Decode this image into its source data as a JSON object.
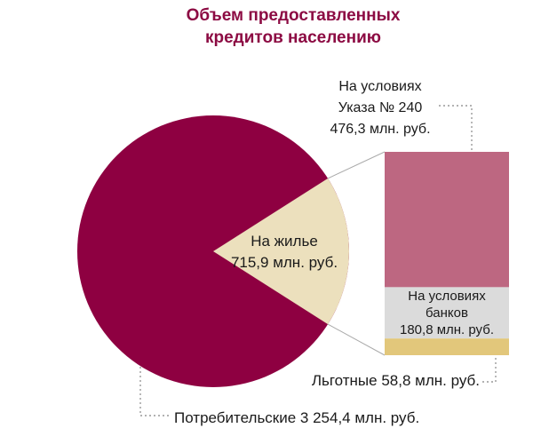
{
  "title": {
    "line1": "Объем предоставленных",
    "line2": "кредитов населению"
  },
  "colors": {
    "title": "#8C0B43",
    "consumer_slice": "#8E0041",
    "housing_slice": "#ECE0BD",
    "decree_segment": "#BD6781",
    "banks_segment": "#DBDBDB",
    "preferential_segment": "#E2C77B",
    "connector_line": "#AAAAAA",
    "leader_dots": "#999999",
    "text": "#1A1A1A"
  },
  "chart_data": {
    "type": "pie",
    "title": "Объем предоставленных кредитов населению",
    "unit": "млн. руб.",
    "slices": [
      {
        "name": "Потребительские",
        "value": 3254.4,
        "label": "Потребительские 3 254,4 млн. руб.",
        "color": "#8E0041"
      },
      {
        "name": "На жилье",
        "value": 715.9,
        "label": "На жилье 715,9 млн. руб.",
        "color": "#ECE0BD",
        "exploded_to_bar": true
      }
    ],
    "housing_breakdown": [
      {
        "name": "На условиях Указа № 240",
        "value": 476.3,
        "label": "На условиях Указа № 240 476,3 млн. руб.",
        "color": "#BD6781"
      },
      {
        "name": "На условиях банков",
        "value": 180.8,
        "label": "На условиях банков 180,8 млн. руб.",
        "color": "#DBDBDB"
      },
      {
        "name": "Льготные",
        "value": 58.8,
        "label": "Льготные 58,8 млн. руб.",
        "color": "#E2C77B"
      }
    ],
    "legend_position": "callout-labels",
    "grid": false
  },
  "labels": {
    "decree": {
      "line1": "На условиях",
      "line2": "Указа № 240",
      "line3": "476,3 млн. руб."
    },
    "housing": {
      "line1": "На жилье",
      "line2": "715,9 млн. руб."
    },
    "banks": {
      "line1": "На условиях",
      "line2": "банков",
      "line3": "180,8 млн. руб."
    },
    "preferential": "Льготные 58,8 млн. руб.",
    "consumer": "Потребительские 3 254,4 млн. руб."
  }
}
